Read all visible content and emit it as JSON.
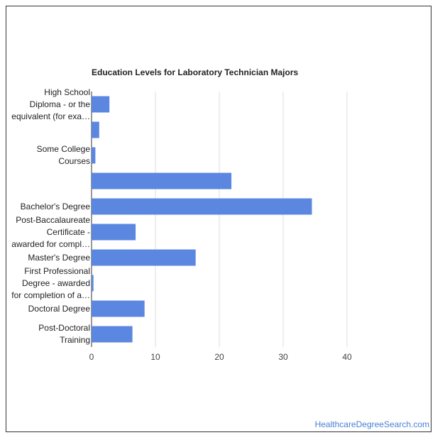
{
  "title": "Education Levels for Laboratory Technician Majors",
  "source_label": "HealthcareDegreeSearch.com",
  "colors": {
    "bar": "#5b87e0",
    "grid": "#dddddd",
    "axis": "#333333",
    "text": "#222222",
    "link": "#4a7fd6"
  },
  "chart_data": {
    "type": "bar",
    "orientation": "horizontal",
    "title": "Education Levels for Laboratory Technician Majors",
    "categories": [
      [
        "High School",
        "Diploma - or the",
        "equivalent (for exa…"
      ],
      [],
      [
        "Some College",
        "Courses"
      ],
      [],
      [
        "Bachelor's Degree"
      ],
      [
        "Post-Baccalaureate",
        "Certificate -",
        "awarded for compl…"
      ],
      [
        "Master's Degree"
      ],
      [
        "First Professional",
        "Degree - awarded",
        "for completion of a…"
      ],
      [
        "Doctoral Degree"
      ],
      [
        "Post-Doctoral",
        "Training"
      ]
    ],
    "values": [
      2.8,
      1.2,
      0.6,
      21.9,
      34.5,
      6.9,
      16.3,
      0.3,
      8.3,
      6.4
    ],
    "xlim": [
      0,
      40
    ],
    "xticks": [
      "0",
      "10",
      "20",
      "30",
      "40"
    ],
    "grid": true,
    "xlabel": "",
    "ylabel": ""
  }
}
